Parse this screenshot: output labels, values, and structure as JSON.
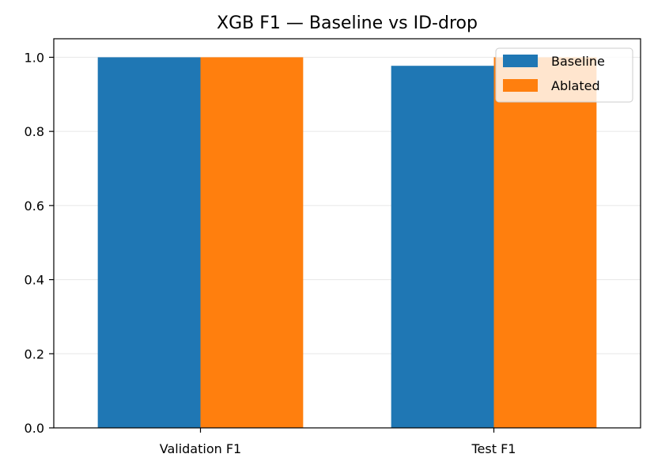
{
  "chart_data": {
    "type": "bar",
    "title": "XGB F1 — Baseline vs ID-drop",
    "xlabel": "",
    "ylabel": "",
    "categories": [
      "Validation F1",
      "Test F1"
    ],
    "series": [
      {
        "name": "Baseline",
        "values": [
          1.0,
          0.977
        ],
        "color": "#1f77b4"
      },
      {
        "name": "Ablated",
        "values": [
          1.0,
          1.0
        ],
        "color": "#ff7f0e"
      }
    ],
    "ylim": [
      0,
      1.05
    ],
    "yticks": [
      "0.0",
      "0.2",
      "0.4",
      "0.6",
      "0.8",
      "1.0"
    ],
    "grid": "y",
    "legend_position": "top-right"
  }
}
